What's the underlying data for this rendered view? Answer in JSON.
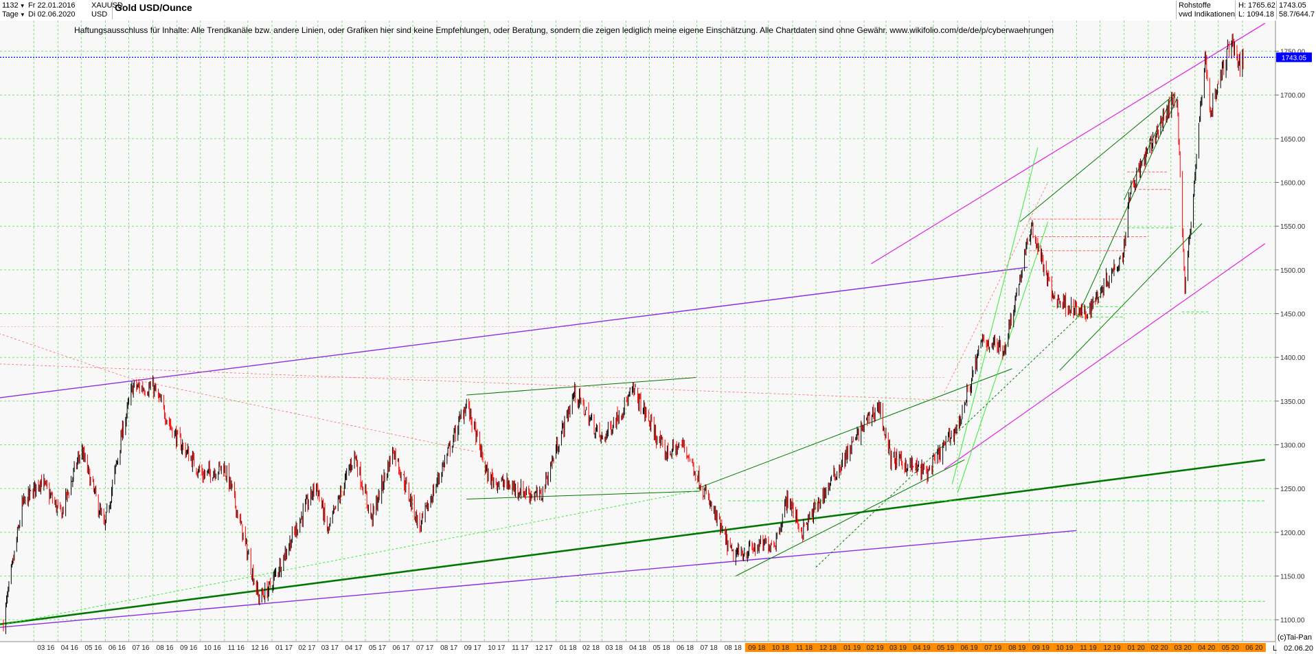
{
  "toolbar": {
    "count": "1132",
    "period": "Tage",
    "start_date": "Fr 22.01.2016",
    "end_date": "Di 02.06.2020",
    "symbol": "XAUUSD",
    "currency": "USD",
    "title": "Gold USD/Ounce",
    "category": "Rohstoffe",
    "indicator_source": "vwd Indikationen",
    "high_label": "H: 1765.62",
    "low_label": "L: 1094.18",
    "last_value": "1743.05",
    "ratio": "58.7/644.7"
  },
  "disclaimer": "Haftungsausschluss für Inhalte: Alle Trendkanäle bzw. andere Linien, oder Grafiken hier sind keine Empfehlungen, oder Beratung, sondern die zeigen lediglich meine eigene Einschätzung. Alle Chartdaten sind ohne Gewähr.  www.wikifolio.com/de/de/p/cyberwaehrungen",
  "footer": {
    "copyright": "(c)Tai-Pan",
    "end_date_short": "02.06.20",
    "l_marker": "L"
  },
  "colors": {
    "candle_up": "#000000",
    "candle_down": "#ff0000",
    "price_line": "#0000ff",
    "grid": "#33cc33",
    "trend_purple": "#8b2be2",
    "trend_magenta": "#e020e0",
    "trend_green": "#007700",
    "trend_lightgreen": "#33ee33",
    "resistance_red": "#ff6666",
    "axis_highlight": "#ff8c00"
  },
  "chart_data": {
    "type": "candlestick",
    "title": "Gold USD/Ounce",
    "x_range": [
      "2016-01-22",
      "2020-06-02"
    ],
    "ylim": [
      1075,
      1785
    ],
    "y_ticks": [
      1100,
      1150,
      1200,
      1250,
      1300,
      1350,
      1400,
      1450,
      1500,
      1550,
      1600,
      1650,
      1700,
      1750
    ],
    "y_tick_labels": [
      "1100.00",
      "1150.00",
      "1200.00",
      "1250.00",
      "1300.00",
      "1350.00",
      "1400.00",
      "1450.00",
      "1500.00",
      "1550.00",
      "1600.00",
      "1650.00",
      "1700.00",
      "1750.00"
    ],
    "x_tick_labels": [
      "03 16",
      "04 16",
      "05 16",
      "06 16",
      "07 16",
      "08 16",
      "09 16",
      "10 16",
      "11 16",
      "12 16",
      "01 17",
      "02 17",
      "03 17",
      "04 17",
      "05 17",
      "06 17",
      "07 17",
      "08 17",
      "09 17",
      "10 17",
      "11 17",
      "12 17",
      "01 18",
      "02 18",
      "03 18",
      "04 18",
      "05 18",
      "06 18",
      "07 18",
      "08 18",
      "09 18",
      "10 18",
      "11 18",
      "12 18",
      "01 19",
      "02 19",
      "03 19",
      "04 19",
      "05 19",
      "06 19",
      "07 19",
      "08 19",
      "09 19",
      "10 19",
      "11 19",
      "12 19",
      "01 20",
      "02 20",
      "03 20",
      "04 20",
      "05 20",
      "06 20"
    ],
    "highlighted_months": [
      "09 18",
      "10 18",
      "11 18",
      "12 18",
      "01 19",
      "02 19",
      "03 19",
      "04 19",
      "05 19",
      "06 19",
      "07 19",
      "08 19",
      "09 19",
      "10 19",
      "11 19",
      "12 19",
      "01 20",
      "02 20",
      "03 20",
      "04 20",
      "05 20",
      "06 20"
    ],
    "last_price": 1743.05,
    "high": 1765.62,
    "low": 1094.18,
    "price_path": [
      [
        "2016-01-22",
        1097
      ],
      [
        "2016-02-15",
        1230
      ],
      [
        "2016-03-10",
        1260
      ],
      [
        "2016-04-05",
        1220
      ],
      [
        "2016-05-01",
        1295
      ],
      [
        "2016-05-31",
        1205
      ],
      [
        "2016-06-24",
        1320
      ],
      [
        "2016-07-06",
        1366
      ],
      [
        "2016-08-02",
        1365
      ],
      [
        "2016-08-30",
        1310
      ],
      [
        "2016-10-04",
        1265
      ],
      [
        "2016-10-31",
        1275
      ],
      [
        "2016-11-10",
        1250
      ],
      [
        "2016-12-15",
        1125
      ],
      [
        "2016-12-28",
        1135
      ],
      [
        "2017-02-27",
        1255
      ],
      [
        "2017-03-14",
        1200
      ],
      [
        "2017-04-17",
        1290
      ],
      [
        "2017-05-09",
        1215
      ],
      [
        "2017-06-06",
        1295
      ],
      [
        "2017-07-10",
        1205
      ],
      [
        "2017-09-08",
        1348
      ],
      [
        "2017-10-06",
        1262
      ],
      [
        "2017-12-12",
        1240
      ],
      [
        "2018-01-25",
        1360
      ],
      [
        "2018-03-01",
        1305
      ],
      [
        "2018-04-11",
        1362
      ],
      [
        "2018-05-21",
        1290
      ],
      [
        "2018-06-14",
        1300
      ],
      [
        "2018-08-16",
        1173
      ],
      [
        "2018-10-10",
        1190
      ],
      [
        "2018-10-26",
        1240
      ],
      [
        "2018-11-13",
        1200
      ],
      [
        "2019-01-31",
        1322
      ],
      [
        "2019-02-20",
        1345
      ],
      [
        "2019-03-07",
        1285
      ],
      [
        "2019-04-23",
        1268
      ],
      [
        "2019-06-03",
        1325
      ],
      [
        "2019-07-03",
        1420
      ],
      [
        "2019-07-31",
        1410
      ],
      [
        "2019-09-04",
        1550
      ],
      [
        "2019-10-01",
        1470
      ],
      [
        "2019-11-12",
        1448
      ],
      [
        "2019-12-31",
        1520
      ],
      [
        "2020-01-08",
        1590
      ],
      [
        "2020-02-24",
        1680
      ],
      [
        "2020-03-09",
        1700
      ],
      [
        "2020-03-19",
        1475
      ],
      [
        "2020-04-14",
        1745
      ],
      [
        "2020-04-21",
        1680
      ],
      [
        "2020-05-18",
        1765
      ],
      [
        "2020-05-29",
        1730
      ],
      [
        "2020-06-02",
        1743
      ]
    ]
  }
}
